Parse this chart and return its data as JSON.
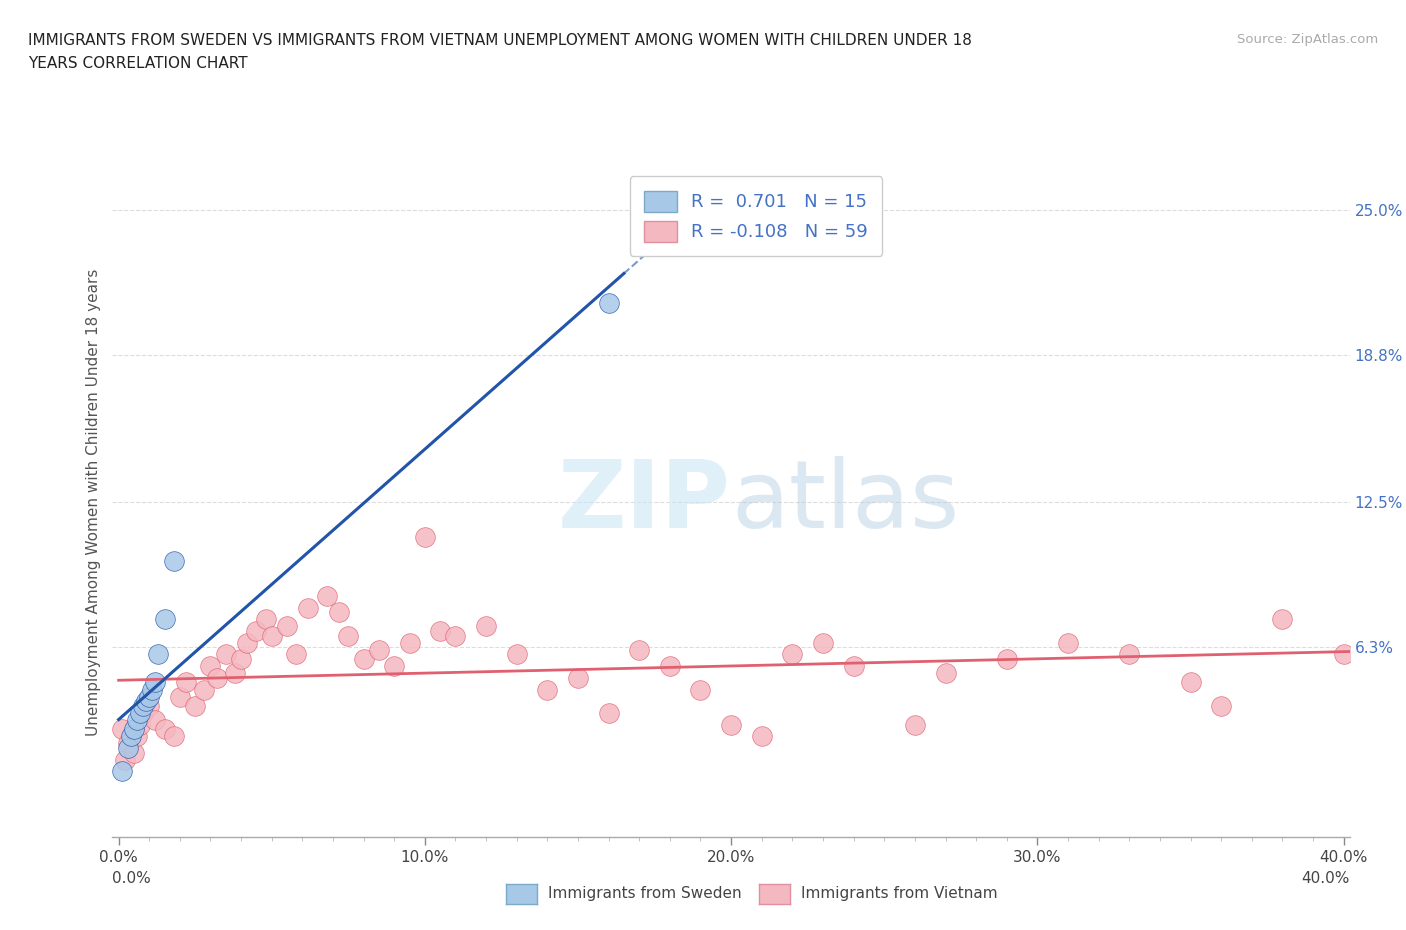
{
  "title_line1": "IMMIGRANTS FROM SWEDEN VS IMMIGRANTS FROM VIETNAM UNEMPLOYMENT AMONG WOMEN WITH CHILDREN UNDER 18",
  "title_line2": "YEARS CORRELATION CHART",
  "source": "Source: ZipAtlas.com",
  "ylabel": "Unemployment Among Women with Children Under 18 years",
  "xlim": [
    -0.002,
    0.402
  ],
  "ylim": [
    -0.018,
    0.268
  ],
  "xtick_labels": [
    "0.0%",
    "",
    "",
    "",
    "",
    "",
    "",
    "",
    "10.0%",
    "",
    "",
    "",
    "",
    "",
    "",
    "",
    "20.0%",
    "",
    "",
    "",
    "",
    "",
    "",
    "",
    "30.0%",
    "",
    "",
    "",
    "",
    "",
    "",
    "",
    "40.0%"
  ],
  "xtick_vals": [
    0.0,
    0.0125,
    0.025,
    0.0375,
    0.05,
    0.0625,
    0.075,
    0.0875,
    0.1,
    0.1125,
    0.125,
    0.1375,
    0.15,
    0.1625,
    0.175,
    0.1875,
    0.2,
    0.2125,
    0.225,
    0.2375,
    0.25,
    0.2625,
    0.275,
    0.2875,
    0.3,
    0.3125,
    0.325,
    0.3375,
    0.35,
    0.3625,
    0.375,
    0.3875,
    0.4
  ],
  "xtick_major": [
    0.0,
    0.1,
    0.2,
    0.3,
    0.4
  ],
  "xtick_major_labels": [
    "0.0%",
    "10.0%",
    "20.0%",
    "30.0%",
    "40.0%"
  ],
  "ytick_right_vals": [
    0.063,
    0.125,
    0.188,
    0.25
  ],
  "ytick_right_labels": [
    "6.3%",
    "12.5%",
    "18.8%",
    "25.0%"
  ],
  "watermark_zip": "ZIP",
  "watermark_atlas": "atlas",
  "legend_r1_label": "R =  0.701   N = 15",
  "legend_r2_label": "R = -0.108   N = 59",
  "legend1_label": "Immigrants from Sweden",
  "legend2_label": "Immigrants from Vietnam",
  "color_sweden": "#A8C8E8",
  "color_vietnam": "#F4B8C0",
  "trendline_sweden": "#2255AA",
  "trendline_vietnam": "#E06070",
  "sweden_x": [
    0.001,
    0.003,
    0.004,
    0.005,
    0.006,
    0.007,
    0.008,
    0.009,
    0.01,
    0.011,
    0.012,
    0.013,
    0.015,
    0.018,
    0.16
  ],
  "sweden_y": [
    0.01,
    0.02,
    0.025,
    0.028,
    0.032,
    0.035,
    0.038,
    0.04,
    0.042,
    0.045,
    0.048,
    0.06,
    0.075,
    0.1,
    0.21
  ],
  "vietnam_x": [
    0.001,
    0.002,
    0.003,
    0.005,
    0.006,
    0.007,
    0.008,
    0.01,
    0.012,
    0.015,
    0.018,
    0.02,
    0.022,
    0.025,
    0.028,
    0.03,
    0.032,
    0.035,
    0.038,
    0.04,
    0.042,
    0.045,
    0.048,
    0.05,
    0.055,
    0.058,
    0.062,
    0.068,
    0.072,
    0.075,
    0.08,
    0.085,
    0.09,
    0.095,
    0.1,
    0.105,
    0.11,
    0.12,
    0.13,
    0.14,
    0.15,
    0.16,
    0.17,
    0.18,
    0.19,
    0.2,
    0.21,
    0.22,
    0.23,
    0.24,
    0.26,
    0.27,
    0.29,
    0.31,
    0.33,
    0.35,
    0.36,
    0.38,
    0.4
  ],
  "vietnam_y": [
    0.028,
    0.015,
    0.022,
    0.018,
    0.025,
    0.03,
    0.035,
    0.038,
    0.032,
    0.028,
    0.025,
    0.042,
    0.048,
    0.038,
    0.045,
    0.055,
    0.05,
    0.06,
    0.052,
    0.058,
    0.065,
    0.07,
    0.075,
    0.068,
    0.072,
    0.06,
    0.08,
    0.085,
    0.078,
    0.068,
    0.058,
    0.062,
    0.055,
    0.065,
    0.11,
    0.07,
    0.068,
    0.072,
    0.06,
    0.045,
    0.05,
    0.035,
    0.062,
    0.055,
    0.045,
    0.03,
    0.025,
    0.06,
    0.065,
    0.055,
    0.03,
    0.052,
    0.058,
    0.065,
    0.06,
    0.048,
    0.038,
    0.075,
    0.06
  ],
  "background_color": "#FFFFFF",
  "grid_color": "#DDDDDD"
}
